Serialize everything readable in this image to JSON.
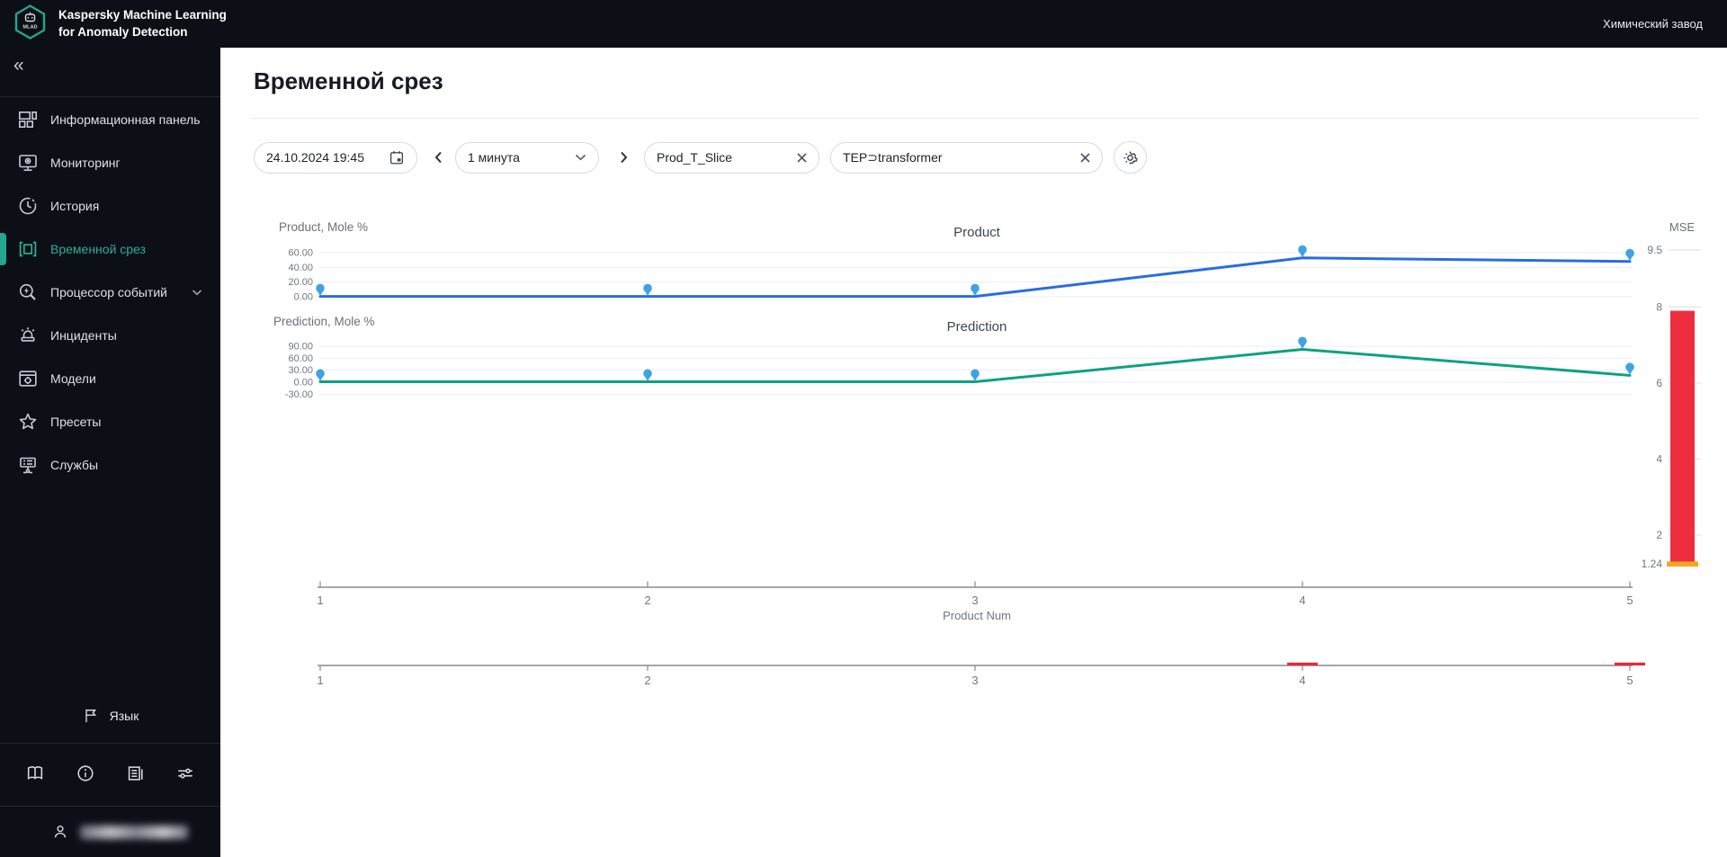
{
  "app": {
    "title_line1": "Kaspersky Machine Learning",
    "title_line2": "for Anomaly Detection",
    "logo_text": "MLAD",
    "header_right": "Химический завод"
  },
  "sidebar": {
    "collapse_label": "«",
    "items": [
      {
        "label": "Информационная панель",
        "icon": "dashboard-icon",
        "active": false
      },
      {
        "label": "Мониторинг",
        "icon": "monitoring-icon",
        "active": false
      },
      {
        "label": "История",
        "icon": "history-icon",
        "active": false
      },
      {
        "label": "Временной срез",
        "icon": "time-slice-icon",
        "active": true
      },
      {
        "label": "Процессор событий",
        "icon": "event-processor-icon",
        "active": false,
        "expandable": true
      },
      {
        "label": "Инциденты",
        "icon": "incidents-icon",
        "active": false
      },
      {
        "label": "Модели",
        "icon": "models-icon",
        "active": false
      },
      {
        "label": "Пресеты",
        "icon": "presets-icon",
        "active": false
      },
      {
        "label": "Службы",
        "icon": "services-icon",
        "active": false
      }
    ],
    "language": {
      "label": "Язык",
      "icon": "flag-icon"
    },
    "footer_icons": [
      "guide-book-icon",
      "info-icon",
      "release-notes-icon",
      "settings-sliders-icon"
    ],
    "user": {
      "icon": "person-icon",
      "email_obscured": true
    }
  },
  "page": {
    "title": "Временной срез"
  },
  "toolbar": {
    "datetime": "24.10.2024  19:45",
    "interval": "1 минута",
    "tags": [
      {
        "label": "Prod_T_Slice"
      },
      {
        "label": "TEP⊃transformer"
      }
    ]
  },
  "chart_data": [
    {
      "type": "line",
      "title": "Product",
      "ylabel": "Product, Mole %",
      "ytick_labels": [
        "60.00",
        "40.00",
        "20.00",
        "0.00"
      ],
      "ytick_values": [
        60,
        40,
        20,
        0
      ],
      "ylim": [
        0,
        66
      ],
      "x": [
        1,
        2,
        3,
        4,
        5
      ],
      "values": [
        0.4,
        0.4,
        0.4,
        53,
        48
      ],
      "line_color": "#2a6ce0",
      "marker_color": "#3da2e6",
      "grid": true
    },
    {
      "type": "line",
      "title": "Prediction",
      "ylabel": "Prediction, Mole %",
      "ytick_labels": [
        "90.00",
        "60.00",
        "30.00",
        "0.00",
        "-30.00"
      ],
      "ytick_values": [
        90,
        60,
        30,
        0,
        -30
      ],
      "ylim": [
        -40,
        100
      ],
      "x": [
        1,
        2,
        3,
        4,
        5
      ],
      "values": [
        1,
        1,
        1,
        82,
        17
      ],
      "line_color": "#0ca183",
      "marker_color": "#3da2e6",
      "grid": true
    },
    {
      "type": "bar",
      "title": "MSE",
      "tick_labels": [
        "9.5",
        "8",
        "6",
        "4",
        "2",
        "1.24"
      ],
      "tick_values": [
        9.5,
        8,
        6,
        4,
        2,
        1.24
      ],
      "value": 7.9,
      "threshold": 1.24,
      "bar_color": "#ee2e3e",
      "threshold_color": "#f4a71f",
      "ylim": [
        1.24,
        9.5
      ]
    },
    {
      "type": "axis",
      "label": "Product Num",
      "ticks": [
        "1",
        "2",
        "3",
        "4",
        "5"
      ]
    },
    {
      "type": "axis",
      "ticks": [
        "1",
        "2",
        "3",
        "4",
        "5"
      ],
      "anomaly_marks_at": [
        4,
        5
      ],
      "mark_color": "#e8293a"
    }
  ]
}
